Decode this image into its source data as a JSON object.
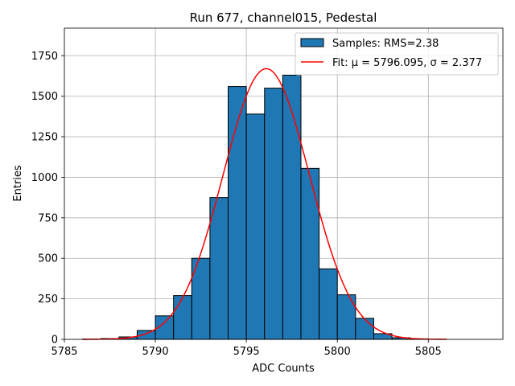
{
  "chart_data": {
    "type": "bar",
    "title": "Run 677, channel015, Pedestal",
    "xlabel": "ADC Counts",
    "ylabel": "Entries",
    "xlim": [
      5785,
      5809.1
    ],
    "ylim": [
      0,
      1920
    ],
    "xticks": [
      5785,
      5790,
      5795,
      5800,
      5805
    ],
    "yticks": [
      0,
      250,
      500,
      750,
      1000,
      1250,
      1500,
      1750
    ],
    "grid": true,
    "legend_position": "top-right",
    "histogram": {
      "name": "Samples: RMS=2.38",
      "color": "#1f77b4",
      "edge_color": "#000000",
      "bin_width": 1,
      "bin_left_edges": [
        5786,
        5787,
        5788,
        5789,
        5790,
        5791,
        5792,
        5793,
        5794,
        5795,
        5796,
        5797,
        5798,
        5799,
        5800,
        5801,
        5802,
        5803,
        5804,
        5805
      ],
      "values": [
        2,
        5,
        15,
        55,
        145,
        270,
        500,
        875,
        1560,
        1390,
        1550,
        1630,
        1055,
        435,
        275,
        130,
        35,
        10,
        3,
        1
      ]
    },
    "fit": {
      "name": "Fit: μ = 5796.095, σ = 2.377",
      "color": "#ff0000",
      "mu": 5796.095,
      "sigma": 2.377,
      "amplitude": 1670,
      "x_range": [
        5786,
        5806
      ]
    }
  }
}
